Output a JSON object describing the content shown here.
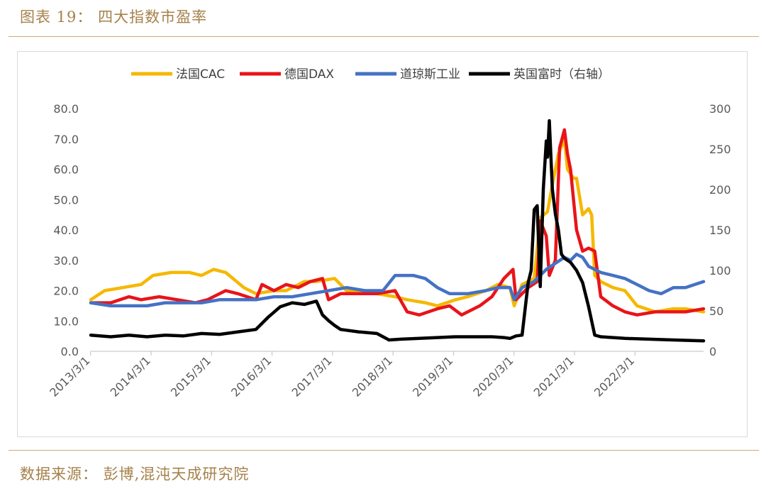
{
  "figure_title": "图表 19： 四大指数市盈率",
  "source_note": "数据来源： 彭博,混沌天成研究院",
  "chart_data": {
    "type": "line",
    "title": "",
    "xlabel": "",
    "ylabel": "",
    "legend_position": "top",
    "grid": false,
    "x_tick_labels": [
      "2013/3/1",
      "2014/3/1",
      "2015/3/1",
      "2016/3/1",
      "2017/3/1",
      "2018/3/1",
      "2019/3/1",
      "2020/3/1",
      "2021/3/1",
      "2022/3/1"
    ],
    "x_range": [
      2013.17,
      2023.3
    ],
    "y_left": {
      "range": [
        0,
        80
      ],
      "tick_labels": [
        "0.0",
        "10.0",
        "20.0",
        "30.0",
        "40.0",
        "50.0",
        "60.0",
        "70.0",
        "80.0"
      ]
    },
    "y_right": {
      "range": [
        0,
        300
      ],
      "tick_labels": [
        "0",
        "50",
        "100",
        "150",
        "200",
        "250",
        "300"
      ]
    },
    "series": [
      {
        "name": "法国CAC",
        "color": "#f5b800",
        "axis": "left",
        "x": [
          2013.17,
          2013.4,
          2013.7,
          2014.0,
          2014.2,
          2014.5,
          2014.8,
          2015.0,
          2015.2,
          2015.4,
          2015.7,
          2015.9,
          2016.2,
          2016.4,
          2016.7,
          2016.9,
          2017.2,
          2017.4,
          2017.7,
          2017.9,
          2018.2,
          2018.4,
          2018.7,
          2018.9,
          2019.2,
          2019.4,
          2019.7,
          2019.9,
          2020.1,
          2020.17,
          2020.3,
          2020.5,
          2020.6,
          2020.72,
          2020.8,
          2020.9,
          2021.0,
          2021.05,
          2021.15,
          2021.2,
          2021.3,
          2021.4,
          2021.45,
          2021.5,
          2021.6,
          2021.8,
          2022.0,
          2022.2,
          2022.5,
          2022.8,
          2023.0,
          2023.3
        ],
        "y": [
          17,
          20,
          21,
          22,
          25,
          26,
          26,
          25,
          27,
          26,
          21,
          19,
          20,
          20,
          23,
          23,
          24,
          20,
          20,
          19,
          18,
          17,
          16,
          15,
          17,
          18,
          20,
          22,
          21,
          15,
          22,
          24,
          44,
          46,
          55,
          65,
          70,
          60,
          57,
          57,
          45,
          47,
          45,
          25,
          23,
          21,
          20,
          15,
          13,
          14,
          14,
          13
        ]
      },
      {
        "name": "德国DAX",
        "color": "#e8141a",
        "axis": "left",
        "x": [
          2013.17,
          2013.5,
          2013.8,
          2014.0,
          2014.3,
          2014.6,
          2014.9,
          2015.1,
          2015.4,
          2015.6,
          2015.9,
          2016.0,
          2016.2,
          2016.4,
          2016.6,
          2016.8,
          2017.0,
          2017.1,
          2017.3,
          2017.6,
          2017.9,
          2018.2,
          2018.4,
          2018.6,
          2018.9,
          2019.1,
          2019.3,
          2019.6,
          2019.8,
          2020.0,
          2020.15,
          2020.2,
          2020.4,
          2020.55,
          2020.6,
          2020.7,
          2020.75,
          2020.85,
          2020.92,
          2021.0,
          2021.05,
          2021.1,
          2021.15,
          2021.2,
          2021.3,
          2021.4,
          2021.5,
          2021.6,
          2021.8,
          2022.0,
          2022.2,
          2022.5,
          2022.8,
          2023.0,
          2023.3
        ],
        "y": [
          16,
          16,
          18,
          17,
          18,
          17,
          16,
          17,
          20,
          19,
          17,
          22,
          20,
          22,
          21,
          23,
          24,
          17,
          19,
          19,
          19,
          20,
          13,
          12,
          14,
          15,
          12,
          15,
          18,
          24,
          27,
          17,
          21,
          23,
          43,
          38,
          25,
          30,
          67,
          73,
          65,
          60,
          50,
          40,
          33,
          34,
          33,
          18,
          15,
          13,
          12,
          13,
          13,
          13,
          14
        ]
      },
      {
        "name": "道琼斯工业",
        "color": "#4472c4",
        "axis": "left",
        "x": [
          2013.17,
          2013.5,
          2013.8,
          2014.1,
          2014.4,
          2014.7,
          2015.0,
          2015.3,
          2015.6,
          2015.9,
          2016.2,
          2016.5,
          2016.8,
          2017.1,
          2017.4,
          2017.7,
          2018.0,
          2018.2,
          2018.5,
          2018.7,
          2018.9,
          2019.1,
          2019.4,
          2019.7,
          2019.9,
          2020.1,
          2020.17,
          2020.3,
          2020.5,
          2020.7,
          2020.85,
          2021.0,
          2021.1,
          2021.2,
          2021.3,
          2021.4,
          2021.6,
          2021.8,
          2022.0,
          2022.2,
          2022.4,
          2022.6,
          2022.8,
          2023.0,
          2023.3
        ],
        "y": [
          16,
          15,
          15,
          15,
          16,
          16,
          16,
          17,
          17,
          17,
          18,
          18,
          19,
          20,
          21,
          20,
          20,
          25,
          25,
          24,
          21,
          19,
          19,
          20,
          21,
          21,
          17,
          21,
          23,
          27,
          29,
          31,
          30,
          32,
          31,
          28,
          26,
          25,
          24,
          22,
          20,
          19,
          21,
          21,
          23
        ]
      },
      {
        "name": "英国富时（右轴）",
        "color": "#000000",
        "axis": "right",
        "x": [
          2013.17,
          2013.5,
          2013.8,
          2014.1,
          2014.4,
          2014.7,
          2015.0,
          2015.3,
          2015.6,
          2015.9,
          2016.1,
          2016.3,
          2016.5,
          2016.7,
          2016.9,
          2017.0,
          2017.1,
          2017.2,
          2017.3,
          2017.6,
          2017.9,
          2018.1,
          2018.3,
          2018.6,
          2018.9,
          2019.2,
          2019.5,
          2019.8,
          2020.0,
          2020.1,
          2020.2,
          2020.3,
          2020.4,
          2020.45,
          2020.5,
          2020.55,
          2020.6,
          2020.65,
          2020.7,
          2020.72,
          2020.75,
          2020.8,
          2020.85,
          2020.9,
          2020.95,
          2021.0,
          2021.1,
          2021.2,
          2021.3,
          2021.4,
          2021.5,
          2021.6,
          2022.0,
          2022.4,
          2022.8,
          2023.3
        ],
        "y": [
          20,
          18,
          20,
          18,
          20,
          19,
          22,
          21,
          24,
          27,
          42,
          55,
          60,
          58,
          62,
          45,
          38,
          32,
          27,
          24,
          22,
          14,
          15,
          16,
          17,
          18,
          18,
          18,
          17,
          16,
          19,
          20,
          85,
          100,
          175,
          180,
          80,
          200,
          260,
          240,
          285,
          200,
          170,
          150,
          120,
          115,
          110,
          100,
          85,
          55,
          20,
          18,
          16,
          15,
          14,
          13
        ]
      }
    ]
  }
}
